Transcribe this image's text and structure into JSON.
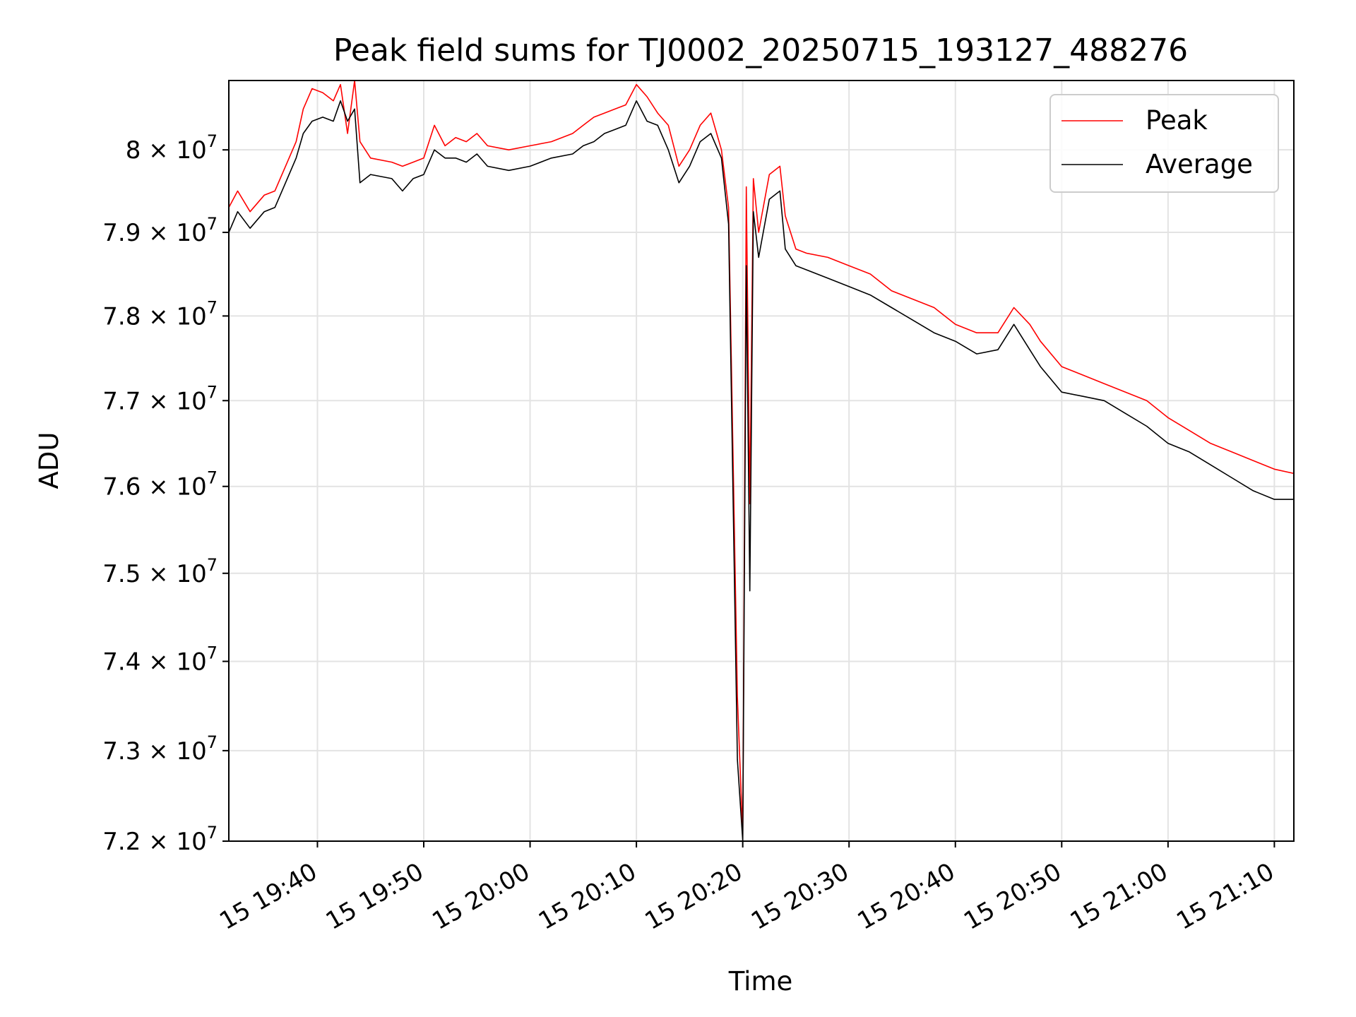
{
  "chart_data": {
    "type": "line",
    "title": "Peak field sums for TJ0002_20250715_193127_488276",
    "xlabel": "Time",
    "ylabel": "ADU",
    "x_unit": "time of day (HH:MM), day 15",
    "xlim": [
      "19:31:40",
      "21:11:50"
    ],
    "ylim": [
      72000000,
      80850000
    ],
    "y_scale": "log",
    "grid": true,
    "legend_position": "top-right",
    "x_ticks": [
      "15 19:40",
      "15 19:50",
      "15 20:00",
      "15 20:10",
      "15 20:20",
      "15 20:30",
      "15 20:40",
      "15 20:50",
      "15 21:00",
      "15 21:10"
    ],
    "x_tick_times": [
      "19:40",
      "19:50",
      "20:00",
      "20:10",
      "20:20",
      "20:30",
      "20:40",
      "20:50",
      "21:00",
      "21:10"
    ],
    "y_ticks": [
      {
        "value": 72000000,
        "mantissa": "7.2",
        "exponent": "7"
      },
      {
        "value": 73000000,
        "mantissa": "7.3",
        "exponent": "7"
      },
      {
        "value": 74000000,
        "mantissa": "7.4",
        "exponent": "7"
      },
      {
        "value": 75000000,
        "mantissa": "7.5",
        "exponent": "7"
      },
      {
        "value": 76000000,
        "mantissa": "7.6",
        "exponent": "7"
      },
      {
        "value": 77000000,
        "mantissa": "7.7",
        "exponent": "7"
      },
      {
        "value": 78000000,
        "mantissa": "7.8",
        "exponent": "7"
      },
      {
        "value": 79000000,
        "mantissa": "7.9",
        "exponent": "7"
      },
      {
        "value": 80000000,
        "mantissa": "8",
        "exponent": "7"
      }
    ],
    "series": [
      {
        "name": "Peak",
        "color": "#ff0000",
        "points": [
          [
            "19:31:40",
            79300000
          ],
          [
            "19:32:30",
            79500000
          ],
          [
            "19:33:40",
            79250000
          ],
          [
            "19:35:00",
            79450000
          ],
          [
            "19:36:00",
            79500000
          ],
          [
            "19:37:00",
            79800000
          ],
          [
            "19:38:00",
            80100000
          ],
          [
            "19:38:40",
            80500000
          ],
          [
            "19:39:30",
            80750000
          ],
          [
            "19:40:30",
            80700000
          ],
          [
            "19:41:30",
            80600000
          ],
          [
            "19:42:10",
            80800000
          ],
          [
            "19:42:50",
            80200000
          ],
          [
            "19:43:30",
            80850000
          ],
          [
            "19:44:00",
            80100000
          ],
          [
            "19:45:00",
            79900000
          ],
          [
            "19:47:00",
            79850000
          ],
          [
            "19:48:00",
            79800000
          ],
          [
            "19:49:00",
            79850000
          ],
          [
            "19:50:00",
            79900000
          ],
          [
            "19:51:00",
            80300000
          ],
          [
            "19:52:00",
            80050000
          ],
          [
            "19:53:00",
            80150000
          ],
          [
            "19:54:00",
            80100000
          ],
          [
            "19:55:00",
            80200000
          ],
          [
            "19:56:00",
            80050000
          ],
          [
            "19:58:00",
            80000000
          ],
          [
            "20:00:00",
            80050000
          ],
          [
            "20:02:00",
            80100000
          ],
          [
            "20:04:00",
            80200000
          ],
          [
            "20:05:00",
            80300000
          ],
          [
            "20:06:00",
            80400000
          ],
          [
            "20:07:00",
            80450000
          ],
          [
            "20:08:00",
            80500000
          ],
          [
            "20:09:00",
            80550000
          ],
          [
            "20:10:00",
            80800000
          ],
          [
            "20:11:00",
            80650000
          ],
          [
            "20:12:00",
            80450000
          ],
          [
            "20:13:00",
            80300000
          ],
          [
            "20:14:00",
            79800000
          ],
          [
            "20:15:00",
            80000000
          ],
          [
            "20:16:00",
            80300000
          ],
          [
            "20:17:00",
            80450000
          ],
          [
            "20:18:00",
            80000000
          ],
          [
            "20:18:40",
            79300000
          ],
          [
            "20:19:30",
            73600000
          ],
          [
            "20:20:00",
            72050000
          ],
          [
            "20:20:20",
            79550000
          ],
          [
            "20:20:40",
            75800000
          ],
          [
            "20:21:00",
            79650000
          ],
          [
            "20:21:30",
            79000000
          ],
          [
            "20:22:30",
            79700000
          ],
          [
            "20:23:30",
            79800000
          ],
          [
            "20:24:00",
            79200000
          ],
          [
            "20:25:00",
            78800000
          ],
          [
            "20:26:00",
            78750000
          ],
          [
            "20:28:00",
            78700000
          ],
          [
            "20:30:00",
            78600000
          ],
          [
            "20:32:00",
            78500000
          ],
          [
            "20:34:00",
            78300000
          ],
          [
            "20:36:00",
            78200000
          ],
          [
            "20:38:00",
            78100000
          ],
          [
            "20:40:00",
            77900000
          ],
          [
            "20:42:00",
            77800000
          ],
          [
            "20:44:00",
            77800000
          ],
          [
            "20:45:30",
            78100000
          ],
          [
            "20:47:00",
            77900000
          ],
          [
            "20:48:00",
            77700000
          ],
          [
            "20:50:00",
            77400000
          ],
          [
            "20:52:00",
            77300000
          ],
          [
            "20:54:00",
            77200000
          ],
          [
            "20:56:00",
            77100000
          ],
          [
            "20:58:00",
            77000000
          ],
          [
            "21:00:00",
            76800000
          ],
          [
            "21:02:00",
            76650000
          ],
          [
            "21:04:00",
            76500000
          ],
          [
            "21:06:00",
            76400000
          ],
          [
            "21:08:00",
            76300000
          ],
          [
            "21:10:00",
            76200000
          ],
          [
            "21:11:50",
            76150000
          ]
        ]
      },
      {
        "name": "Average",
        "color": "#000000",
        "points": [
          [
            "19:31:40",
            79000000
          ],
          [
            "19:32:30",
            79250000
          ],
          [
            "19:33:40",
            79050000
          ],
          [
            "19:35:00",
            79250000
          ],
          [
            "19:36:00",
            79300000
          ],
          [
            "19:37:00",
            79600000
          ],
          [
            "19:38:00",
            79900000
          ],
          [
            "19:38:40",
            80200000
          ],
          [
            "19:39:30",
            80350000
          ],
          [
            "19:40:30",
            80400000
          ],
          [
            "19:41:30",
            80350000
          ],
          [
            "19:42:10",
            80600000
          ],
          [
            "19:42:50",
            80350000
          ],
          [
            "19:43:30",
            80500000
          ],
          [
            "19:44:00",
            79600000
          ],
          [
            "19:45:00",
            79700000
          ],
          [
            "19:47:00",
            79650000
          ],
          [
            "19:48:00",
            79500000
          ],
          [
            "19:49:00",
            79650000
          ],
          [
            "19:50:00",
            79700000
          ],
          [
            "19:51:00",
            80000000
          ],
          [
            "19:52:00",
            79900000
          ],
          [
            "19:53:00",
            79900000
          ],
          [
            "19:54:00",
            79850000
          ],
          [
            "19:55:00",
            79950000
          ],
          [
            "19:56:00",
            79800000
          ],
          [
            "19:58:00",
            79750000
          ],
          [
            "20:00:00",
            79800000
          ],
          [
            "20:02:00",
            79900000
          ],
          [
            "20:04:00",
            79950000
          ],
          [
            "20:05:00",
            80050000
          ],
          [
            "20:06:00",
            80100000
          ],
          [
            "20:07:00",
            80200000
          ],
          [
            "20:08:00",
            80250000
          ],
          [
            "20:09:00",
            80300000
          ],
          [
            "20:10:00",
            80600000
          ],
          [
            "20:11:00",
            80350000
          ],
          [
            "20:12:00",
            80300000
          ],
          [
            "20:13:00",
            80000000
          ],
          [
            "20:14:00",
            79600000
          ],
          [
            "20:15:00",
            79800000
          ],
          [
            "20:16:00",
            80100000
          ],
          [
            "20:17:00",
            80200000
          ],
          [
            "20:18:00",
            79900000
          ],
          [
            "20:18:40",
            79100000
          ],
          [
            "20:19:30",
            72900000
          ],
          [
            "20:20:00",
            72000000
          ],
          [
            "20:20:20",
            78600000
          ],
          [
            "20:20:40",
            74800000
          ],
          [
            "20:21:00",
            79250000
          ],
          [
            "20:21:30",
            78700000
          ],
          [
            "20:22:30",
            79400000
          ],
          [
            "20:23:30",
            79500000
          ],
          [
            "20:24:00",
            78800000
          ],
          [
            "20:25:00",
            78600000
          ],
          [
            "20:26:00",
            78550000
          ],
          [
            "20:28:00",
            78450000
          ],
          [
            "20:30:00",
            78350000
          ],
          [
            "20:32:00",
            78250000
          ],
          [
            "20:34:00",
            78100000
          ],
          [
            "20:36:00",
            77950000
          ],
          [
            "20:38:00",
            77800000
          ],
          [
            "20:40:00",
            77700000
          ],
          [
            "20:42:00",
            77550000
          ],
          [
            "20:44:00",
            77600000
          ],
          [
            "20:45:30",
            77900000
          ],
          [
            "20:47:00",
            77600000
          ],
          [
            "20:48:00",
            77400000
          ],
          [
            "20:50:00",
            77100000
          ],
          [
            "20:52:00",
            77050000
          ],
          [
            "20:54:00",
            77000000
          ],
          [
            "20:56:00",
            76850000
          ],
          [
            "20:58:00",
            76700000
          ],
          [
            "21:00:00",
            76500000
          ],
          [
            "21:02:00",
            76400000
          ],
          [
            "21:04:00",
            76250000
          ],
          [
            "21:06:00",
            76100000
          ],
          [
            "21:08:00",
            75950000
          ],
          [
            "21:10:00",
            75850000
          ],
          [
            "21:11:50",
            75850000
          ]
        ]
      }
    ]
  }
}
